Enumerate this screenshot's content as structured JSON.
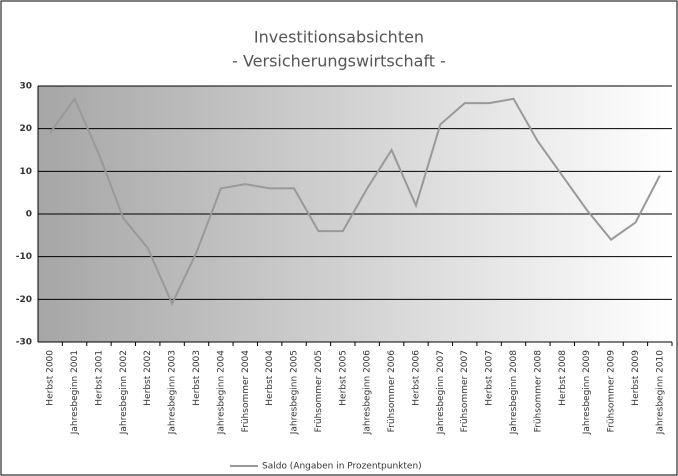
{
  "chart_data": {
    "type": "line",
    "title": "Investitionsabsichten",
    "subtitle": "- Versicherungswirtschaft -",
    "categories": [
      "Herbst 2000",
      "Jahresbeginn 2001",
      "Herbst 2001",
      "Jahresbeginn 2002",
      "Herbst 2002",
      "Jahresbeginn 2003",
      "Herbst 2003",
      "Jahresbeginn 2004",
      "Frühsommer 2004",
      "Herbst 2004",
      "Jahresbeginn 2005",
      "Frühsommer 2005",
      "Herbst 2005",
      "Jahresbeginn 2006",
      "Frühsommer 2006",
      "Herbst 2006",
      "Jahresbeginn 2007",
      "Frühsommer 2007",
      "Herbst 2007",
      "Jahresbeginn 2008",
      "Frühsommer 2008",
      "Herbst 2008",
      "Jahresbeginn 2009",
      "Frühsommer 2009",
      "Herbst 2009",
      "Jahresbeginn 2010"
    ],
    "series": [
      {
        "name": "Saldo (Angaben in Prozentpunkten)",
        "color": "#999999",
        "values": [
          19,
          27,
          14,
          -1,
          -8,
          -21,
          -9,
          6,
          7,
          6,
          6,
          -4,
          -4,
          6,
          15,
          2,
          21,
          26,
          26,
          27,
          17,
          9,
          1,
          -6,
          -2,
          9
        ]
      }
    ],
    "ylim": [
      -30,
      30
    ],
    "yticks": [
      -30,
      -20,
      -10,
      0,
      10,
      20,
      30
    ],
    "grid": true,
    "legend": "bottom"
  }
}
